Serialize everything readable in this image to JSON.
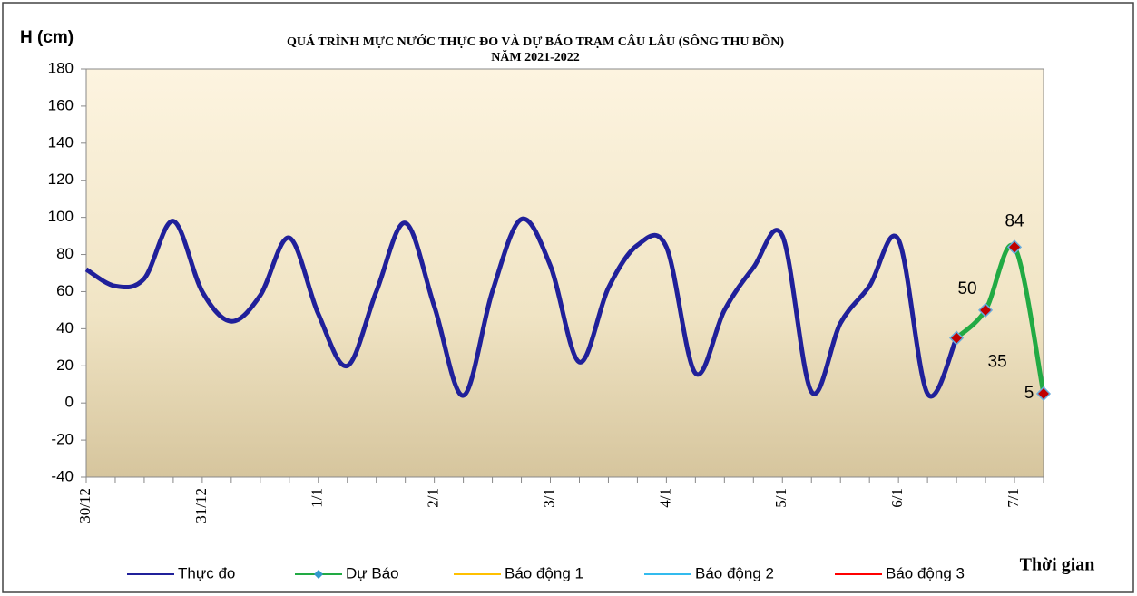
{
  "chart_data": {
    "type": "line",
    "title": "QUÁ TRÌNH MỰC NƯỚC THỰC ĐO VÀ DỰ BÁO TRẠM CÂU LÂU (SÔNG THU BỒN)",
    "subtitle": "NĂM  2021-2022",
    "y_label": "H (cm)",
    "x_label": "Thời gian",
    "categories": [
      "30/12",
      null,
      null,
      null,
      "31/12",
      null,
      null,
      null,
      "1/1",
      null,
      null,
      null,
      "2/1",
      null,
      null,
      null,
      "3/1",
      null,
      null,
      null,
      "4/1",
      null,
      null,
      null,
      "5/1",
      null,
      null,
      null,
      "6/1",
      null,
      null,
      null,
      "7/1",
      null
    ],
    "series": [
      {
        "name": "Thực đo",
        "color": "#20209a",
        "values": [
          72,
          63,
          67,
          98,
          60,
          44,
          58,
          89,
          48,
          20,
          60,
          97,
          52,
          4,
          60,
          99,
          74,
          22,
          62,
          85,
          84,
          16,
          50,
          73,
          90,
          6,
          43,
          63,
          88,
          5,
          35,
          null,
          null,
          null
        ]
      },
      {
        "name": "Dự Báo",
        "color": "#22aa44",
        "marker_color": "#c00000",
        "values": [
          null,
          null,
          null,
          null,
          null,
          null,
          null,
          null,
          null,
          null,
          null,
          null,
          null,
          null,
          null,
          null,
          null,
          null,
          null,
          null,
          null,
          null,
          null,
          null,
          null,
          null,
          null,
          null,
          null,
          null,
          35,
          50,
          84,
          5
        ]
      },
      {
        "name": "Báo động 1",
        "color": "#ffc000"
      },
      {
        "name": "Báo động 2",
        "color": "#33bbee"
      },
      {
        "name": "Báo động 3",
        "color": "#ff0000"
      }
    ],
    "ylim": [
      -40,
      180
    ],
    "yticks": [
      -40,
      -20,
      0,
      20,
      40,
      60,
      80,
      100,
      120,
      140,
      160,
      180
    ],
    "grid": false,
    "smooth": true,
    "legend": "bottom"
  }
}
